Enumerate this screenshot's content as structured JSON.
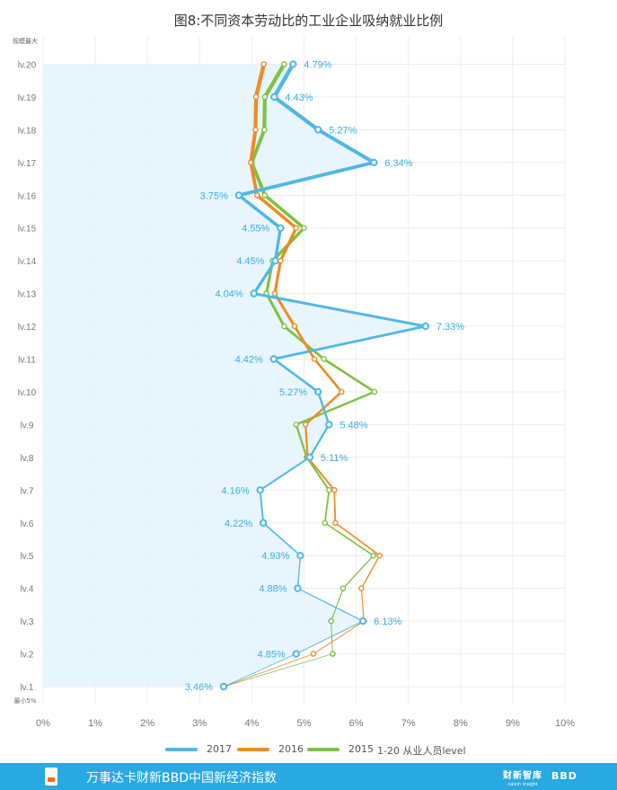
{
  "title": "图8:不同资本劳动比的工业企业吸纳就业比例",
  "chart_data": {
    "type": "line",
    "title": "图8:不同资本劳动比的工业企业吸纳就业比例",
    "y_top_label": "规模最大",
    "y_bottom_label": "最小5%",
    "categories": [
      "lv.1",
      "lv.2",
      "lv.3",
      "lv.4",
      "lv.5",
      "lv.6",
      "lv.7",
      "lv.8",
      "lv.9",
      "lv.10",
      "lv.11",
      "lv.12",
      "lv.13",
      "lv.14",
      "lv.15",
      "lv.16",
      "lv.17",
      "lv.18",
      "lv.19",
      "lv.20"
    ],
    "x_ticks": [
      "0%",
      "1%",
      "2%",
      "3%",
      "4%",
      "5%",
      "6%",
      "7%",
      "8%",
      "9%",
      "10%"
    ],
    "xlim": [
      0,
      10
    ],
    "grid": true,
    "legend_position": "bottom",
    "series": [
      {
        "name": "2017",
        "color": "#4fb8e6",
        "values": [
          null,
          4.85,
          6.13,
          4.88,
          4.93,
          4.22,
          4.16,
          5.11,
          5.48,
          5.27,
          4.42,
          7.33,
          4.04,
          4.45,
          4.55,
          3.75,
          6.34,
          5.27,
          4.43,
          4.79
        ],
        "end_value": 3.46
      },
      {
        "name": "2016",
        "color": "#f08a24",
        "values": [
          null,
          5.18,
          6.15,
          6.1,
          6.45,
          5.6,
          5.58,
          5.07,
          5.03,
          5.72,
          5.2,
          4.82,
          4.44,
          4.55,
          4.85,
          4.1,
          3.98,
          4.07,
          4.08,
          4.23
        ]
      },
      {
        "name": "2015",
        "color": "#7dc243",
        "values": [
          null,
          5.55,
          5.52,
          5.75,
          6.33,
          5.4,
          5.48,
          5.05,
          4.85,
          6.35,
          5.38,
          4.62,
          4.28,
          4.4,
          5.0,
          4.25,
          4.0,
          4.24,
          4.25,
          4.62
        ]
      }
    ],
    "labels": [
      "3.46%",
      "4.85%",
      "6.13%",
      "4.88%",
      "4.93%",
      "4.22%",
      "4.16%",
      "5.11%",
      "5.48%",
      "5.27%",
      "4.42%",
      "7.33%",
      "4.04%",
      "4.45%",
      "4.55%",
      "3.75%",
      "6.34%",
      "5.27%",
      "4.43%",
      "4.79%"
    ],
    "legend_note": "1-20  从业人员level"
  },
  "legend": [
    {
      "label": "2017",
      "color": "#4fb8e6"
    },
    {
      "label": "2016",
      "color": "#f08a24"
    },
    {
      "label": "2015",
      "color": "#7dc243"
    }
  ],
  "legend_note": "1-20  从业人员level",
  "footer": {
    "text": "万事达卡财新BBD中国新经济指数",
    "brand": "财新智库",
    "brand_sub": "caixin insight",
    "logo": "BBD"
  }
}
